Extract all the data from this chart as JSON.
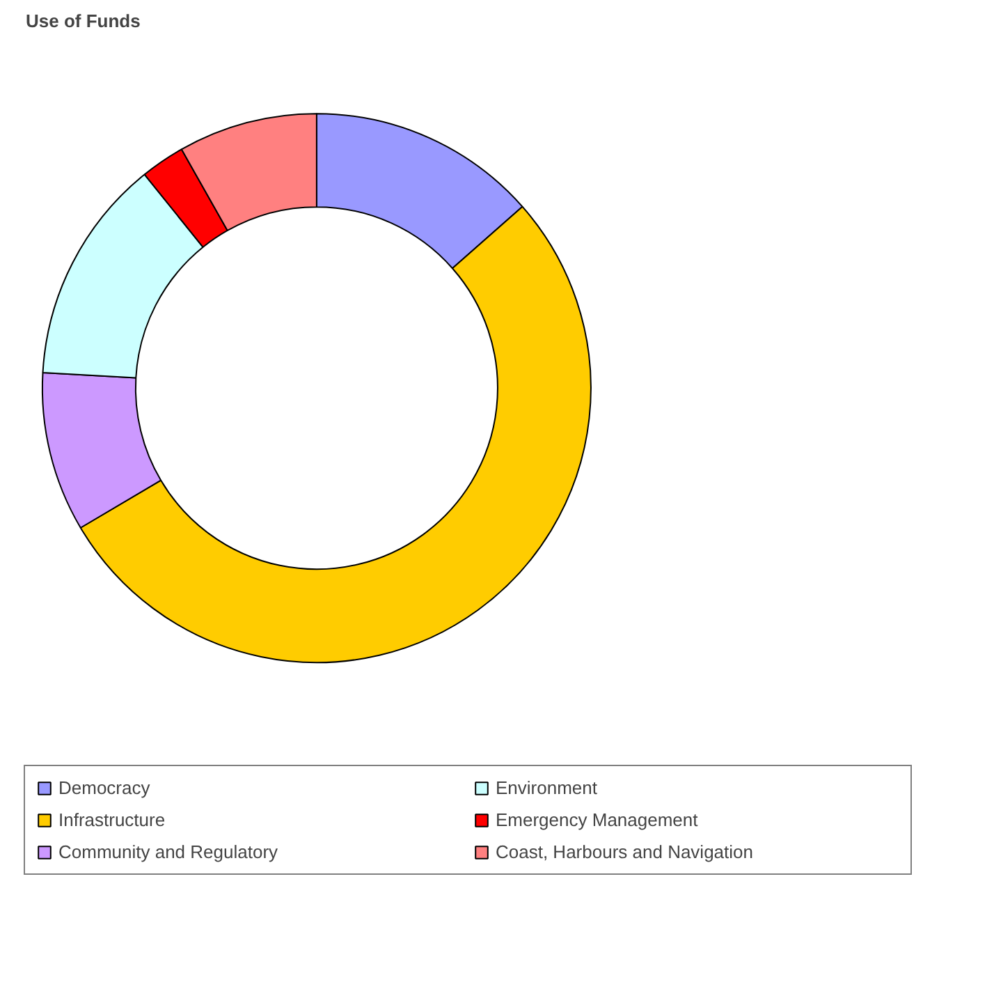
{
  "chart_data": {
    "type": "donut",
    "title": "Use of Funds",
    "categories": [
      "Democracy",
      "Infrastructure",
      "Community and Regulatory",
      "Environment",
      "Emergency Management",
      "Coast, Harbours and Navigation"
    ],
    "values": [
      13.5,
      53.0,
      9.4,
      13.3,
      2.6,
      8.2
    ],
    "colors": [
      "#9999ff",
      "#ffcc00",
      "#cc99ff",
      "#ccffff",
      "#ff0000",
      "#ff8080"
    ],
    "legend": "bottom"
  }
}
